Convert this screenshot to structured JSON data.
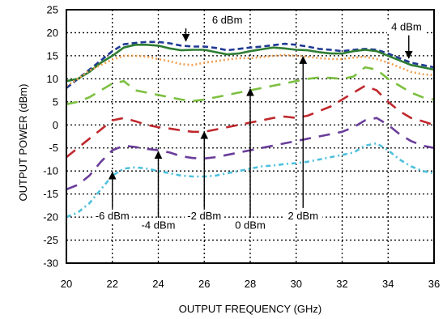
{
  "chart_data": {
    "type": "line",
    "xlabel": "OUTPUT FREQUENCY (GHz)",
    "ylabel": "OUTPUT POWER (dBm)",
    "xlim": [
      20,
      36
    ],
    "ylim": [
      -30,
      25
    ],
    "xticks": [
      20,
      22,
      24,
      26,
      28,
      30,
      32,
      34,
      36
    ],
    "yticks": [
      25,
      20,
      15,
      10,
      5,
      0,
      -5,
      -10,
      -15,
      -20,
      -25,
      -30
    ],
    "grid": true,
    "series": [
      {
        "name": "6 dBm",
        "color": "#1f3a93",
        "style": "dash",
        "x": [
          20,
          20.5,
          21,
          21.5,
          22,
          22.5,
          23,
          23.5,
          24,
          24.5,
          25,
          25.5,
          26,
          26.5,
          27,
          27.5,
          28,
          28.5,
          29,
          29.5,
          30,
          30.5,
          31,
          31.5,
          32,
          32.5,
          33,
          33.5,
          34,
          34.5,
          35,
          35.5,
          36
        ],
        "y": [
          8,
          10,
          12,
          14,
          16,
          17.5,
          17.8,
          18,
          18,
          17.7,
          17.2,
          17,
          17,
          16.7,
          16.2,
          16.5,
          16.8,
          17,
          17.3,
          17.6,
          17.4,
          17,
          16.5,
          16.3,
          16,
          16.3,
          16.5,
          16.3,
          15.5,
          14.5,
          13.5,
          13,
          12.5
        ]
      },
      {
        "name": "4 dBm",
        "color": "#2e7d32",
        "style": "solid",
        "x": [
          20,
          20.5,
          21,
          21.5,
          22,
          22.5,
          23,
          23.5,
          24,
          24.5,
          25,
          25.5,
          26,
          26.5,
          27,
          27.5,
          28,
          28.5,
          29,
          29.5,
          30,
          30.5,
          31,
          31.5,
          32,
          32.5,
          33,
          33.5,
          34,
          34.5,
          35,
          35.5,
          36
        ],
        "y": [
          9.5,
          10,
          11.5,
          13.5,
          15,
          16.8,
          17.4,
          17.4,
          17.2,
          16.6,
          16.2,
          16.3,
          16.3,
          15.8,
          15.3,
          15.5,
          16,
          16.4,
          16.8,
          16.6,
          16.3,
          16.2,
          15.8,
          15.5,
          15.5,
          16,
          16.3,
          16,
          15,
          14,
          13,
          12.5,
          12
        ]
      },
      {
        "name": "2 dBm",
        "color": "#f0a050",
        "style": "dot",
        "x": [
          20,
          20.5,
          21,
          21.5,
          22,
          22.5,
          23,
          23.5,
          24,
          24.5,
          25,
          25.5,
          26,
          26.5,
          27,
          27.5,
          28,
          28.5,
          29,
          29.5,
          30,
          30.5,
          31,
          31.5,
          32,
          32.5,
          33,
          33.5,
          34,
          34.5,
          35,
          35.5,
          36
        ],
        "y": [
          8.5,
          10,
          11.8,
          13,
          14.2,
          15,
          15,
          14.8,
          14.3,
          13.8,
          13.2,
          13,
          13.5,
          13.8,
          14.2,
          14.5,
          14.5,
          14.7,
          15,
          15.2,
          15,
          14.8,
          14.5,
          14.3,
          14.3,
          14.6,
          14.8,
          14.3,
          13.5,
          12.5,
          11.5,
          11,
          10.8
        ]
      },
      {
        "name": "0 dBm",
        "color": "#7cc040",
        "style": "longdash",
        "x": [
          20,
          20.5,
          21,
          21.5,
          22,
          22.5,
          23,
          23.5,
          24,
          24.5,
          25,
          25.5,
          26,
          26.5,
          27,
          27.5,
          28,
          28.5,
          29,
          29.5,
          30,
          30.5,
          31,
          31.5,
          32,
          32.5,
          33,
          33.5,
          34,
          34.5,
          35,
          35.5,
          36
        ],
        "y": [
          4.5,
          5,
          6,
          7.5,
          9,
          9.5,
          7.5,
          7,
          6.5,
          6,
          5.5,
          5.2,
          5.5,
          6,
          6.5,
          7,
          7.5,
          8,
          8.5,
          9,
          9.5,
          10,
          10.3,
          10.2,
          10,
          10.5,
          12.5,
          12,
          10,
          8.5,
          7,
          6,
          5.5
        ]
      },
      {
        "name": "-2 dBm",
        "color": "#c0282d",
        "style": "longdash",
        "x": [
          20,
          20.5,
          21,
          21.5,
          22,
          22.5,
          23,
          23.5,
          24,
          24.5,
          25,
          25.5,
          26,
          26.5,
          27,
          27.5,
          28,
          28.5,
          29,
          29.5,
          30,
          30.5,
          31,
          31.5,
          32,
          32.5,
          33,
          33.5,
          34,
          34.5,
          35,
          35.5,
          36
        ],
        "y": [
          -7,
          -5,
          -3,
          -1,
          1,
          1.5,
          0.8,
          0,
          -0.5,
          -0.8,
          -1.2,
          -1.5,
          -1.5,
          -1,
          -0.5,
          0,
          0.5,
          1,
          1.5,
          1.8,
          1.5,
          2,
          3,
          4,
          5.5,
          7,
          8.5,
          7.5,
          5,
          3,
          1.5,
          0.8,
          0
        ]
      },
      {
        "name": "-4 dBm",
        "color": "#6a3d9a",
        "style": "longdash",
        "x": [
          20,
          20.5,
          21,
          21.5,
          22,
          22.5,
          23,
          23.5,
          24,
          24.5,
          25,
          25.5,
          26,
          26.5,
          27,
          27.5,
          28,
          28.5,
          29,
          29.5,
          30,
          30.5,
          31,
          31.5,
          32,
          32.5,
          33,
          33.5,
          34,
          34.5,
          35,
          35.5,
          36
        ],
        "y": [
          -14,
          -13,
          -11,
          -8,
          -5.5,
          -4.5,
          -4.8,
          -5.2,
          -5.5,
          -6,
          -6.8,
          -7.2,
          -7.3,
          -7,
          -6.5,
          -6,
          -5.5,
          -5,
          -4.5,
          -4,
          -3.5,
          -3,
          -2.5,
          -2,
          -1.5,
          -0.5,
          1,
          1.5,
          0,
          -2,
          -3.5,
          -4.5,
          -5
        ]
      },
      {
        "name": "-6 dBm",
        "color": "#4ec0dc",
        "style": "dashdot",
        "x": [
          20,
          20.5,
          21,
          21.5,
          22,
          22.5,
          23,
          23.5,
          24,
          24.5,
          25,
          25.5,
          26,
          26.5,
          27,
          27.5,
          28,
          28.5,
          29,
          29.5,
          30,
          30.5,
          31,
          31.5,
          32,
          32.5,
          33,
          33.5,
          34,
          34.5,
          35,
          35.5,
          36
        ],
        "y": [
          -20,
          -19,
          -17,
          -14,
          -11,
          -9.5,
          -9.2,
          -9.5,
          -10,
          -10.5,
          -11,
          -11.2,
          -11.2,
          -11,
          -10.5,
          -10,
          -9.5,
          -9,
          -8.8,
          -8.5,
          -8.3,
          -8,
          -7.5,
          -7,
          -6.5,
          -6,
          -4.5,
          -4,
          -5.5,
          -7.5,
          -9,
          -10,
          -10.5
        ]
      }
    ],
    "annotations": [
      {
        "text": "6 dBm",
        "label_x": 27.0,
        "label_y": 22.0,
        "to_x": 25.2,
        "to_y": 18.2
      },
      {
        "text": "4 dBm",
        "label_x": 34.8,
        "label_y": 20.5,
        "to_x": 34.9,
        "to_y": 14.5
      },
      {
        "text": "2 dBm",
        "label_x": 30.3,
        "label_y": -20.5,
        "to_x": 30.3,
        "to_y": 14.8
      },
      {
        "text": "0 dBm",
        "label_x": 28.0,
        "label_y": -22.5,
        "to_x": 28.0,
        "to_y": 7.8
      },
      {
        "text": "-2 dBm",
        "label_x": 26.0,
        "label_y": -20.5,
        "to_x": 26.0,
        "to_y": -1.5
      },
      {
        "text": "-4 dBm",
        "label_x": 24.0,
        "label_y": -22.5,
        "to_x": 24.0,
        "to_y": -5.8
      },
      {
        "text": "-6 dBm",
        "label_x": 22.0,
        "label_y": -20.5,
        "to_x": 22.0,
        "to_y": -10.3
      }
    ]
  }
}
